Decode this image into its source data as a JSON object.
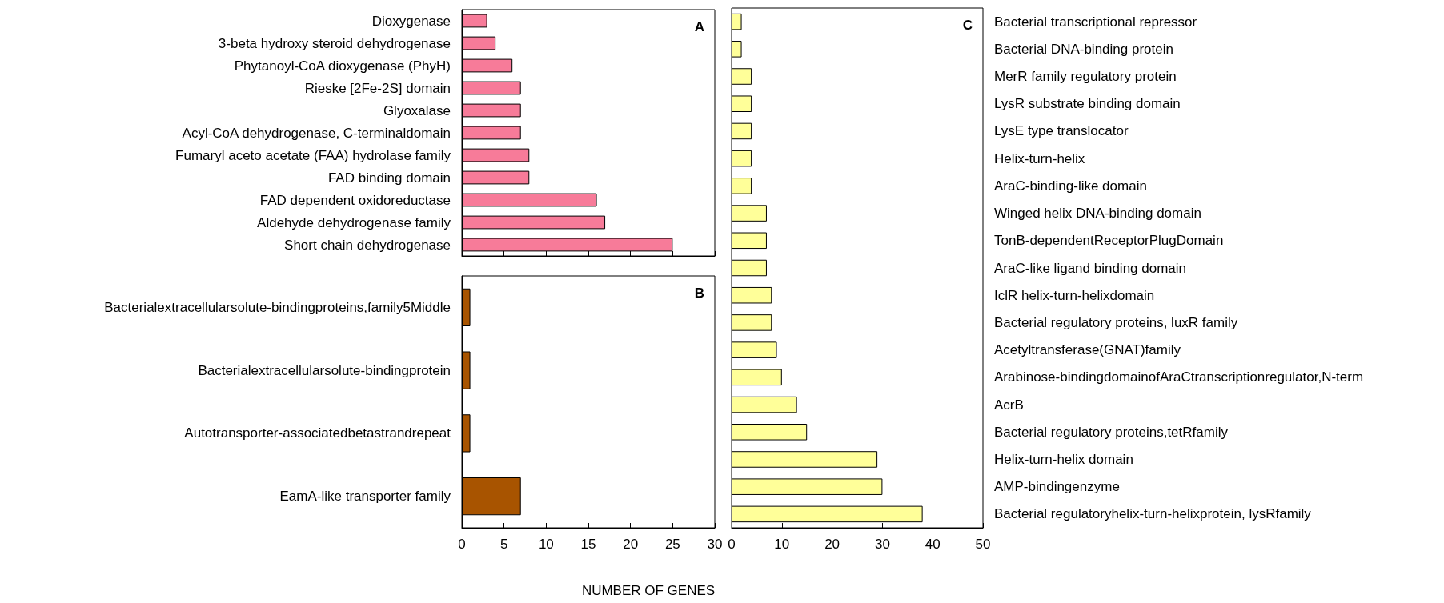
{
  "chart_data": [
    {
      "type": "bar",
      "orientation": "horizontal",
      "title": "A",
      "categories": [
        "Dioxygenase",
        "3-beta hydroxy steroid dehydrogenase",
        "Phytanoyl-CoA dioxygenase (PhyH)",
        "Rieske [2Fe-2S] domain",
        "Glyoxalase",
        "Acyl-CoA dehydrogenase, C-terminaldomain",
        "Fumaryl aceto acetate (FAA) hydrolase family",
        "FAD binding domain",
        "FAD dependent oxidoreductase",
        "Aldehyde dehydrogenase family",
        "Short chain dehydrogenase"
      ],
      "values": [
        3,
        4,
        6,
        7,
        7,
        7,
        8,
        8,
        16,
        17,
        25
      ],
      "color": "#f77b99",
      "xlim": [
        0,
        30
      ],
      "xticks": [
        0,
        5,
        10,
        15,
        20,
        25,
        30
      ],
      "tick_labels": "y"
    },
    {
      "type": "bar",
      "orientation": "horizontal",
      "title": "B",
      "xlabel": "NUMBER OF GENES",
      "categories": [
        "Bacterialextracellularsolute-bindingproteins,family5Middle",
        "Bacterialextracellularsolute-bindingprotein",
        "Autotransporter-associatedbetastrandrepeat",
        "EamA-like transporter family"
      ],
      "values": [
        1,
        1,
        1,
        7
      ],
      "color": "#a85400",
      "xlim": [
        0,
        30
      ],
      "xticks": [
        0,
        5,
        10,
        15,
        20,
        25,
        30
      ]
    },
    {
      "type": "bar",
      "orientation": "horizontal",
      "title": "C",
      "categories": [
        "Bacterial transcriptional repressor",
        "Bacterial DNA-binding protein",
        "MerR family regulatory protein",
        "LysR substrate binding domain",
        "LysE type translocator",
        "Helix-turn-helix",
        "AraC-binding-like domain",
        "Winged helix DNA-binding domain",
        "TonB-dependentReceptorPlugDomain",
        "AraC-like ligand binding domain",
        "IclR helix-turn-helixdomain",
        "Bacterial regulatory proteins, luxR family",
        "Acetyltransferase(GNAT)family",
        "Arabinose-bindingdomainofAraCtranscriptionregulator,N-term",
        "AcrB",
        "Bacterial regulatory proteins,tetRfamily",
        "Helix-turn-helix domain",
        "AMP-bindingenzyme",
        "Bacterial regulatoryhelix-turn-helixprotein, lysRfamily"
      ],
      "values": [
        2,
        2,
        4,
        4,
        4,
        4,
        4,
        7,
        7,
        7,
        8,
        8,
        9,
        10,
        13,
        15,
        29,
        30,
        38
      ],
      "color": "#ffff99",
      "xlim": [
        0,
        50
      ],
      "xticks": [
        0,
        10,
        20,
        30,
        40,
        50
      ]
    }
  ]
}
